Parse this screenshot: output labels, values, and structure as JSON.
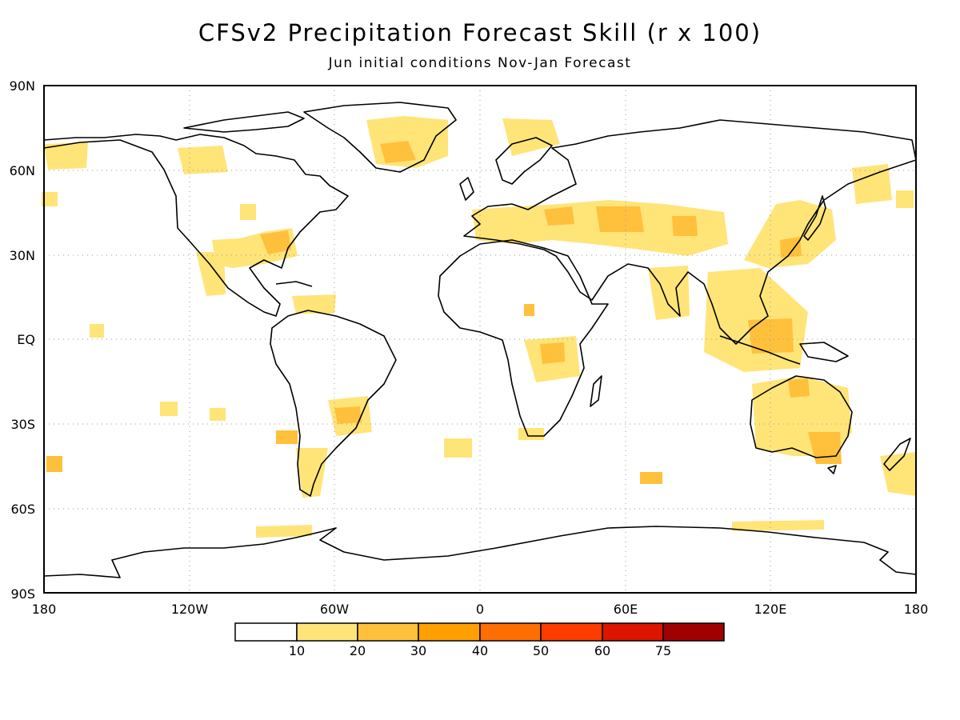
{
  "title": "CFSv2 Precipitation Forecast Skill (r x 100)",
  "subtitle": "Jun initial conditions   Nov-Jan Forecast",
  "lat_labels": [
    "90N",
    "60N",
    "30N",
    "EQ",
    "30S",
    "60S",
    "90S"
  ],
  "lon_labels": [
    "180",
    "120W",
    "60W",
    "0",
    "60E",
    "120E",
    "180"
  ],
  "colorbar": {
    "colors": [
      "#ffffff",
      "#ffe478",
      "#ffc03c",
      "#ffa000",
      "#ff6e00",
      "#ff3c00",
      "#dc1400",
      "#a00000"
    ],
    "labels": [
      "10",
      "20",
      "30",
      "40",
      "50",
      "60",
      "75"
    ]
  },
  "map": {
    "projection": "cylindrical-equidistant",
    "lon_range": [
      -180,
      180
    ],
    "lat_range": [
      -90,
      90
    ],
    "gridlines": "dotted"
  }
}
